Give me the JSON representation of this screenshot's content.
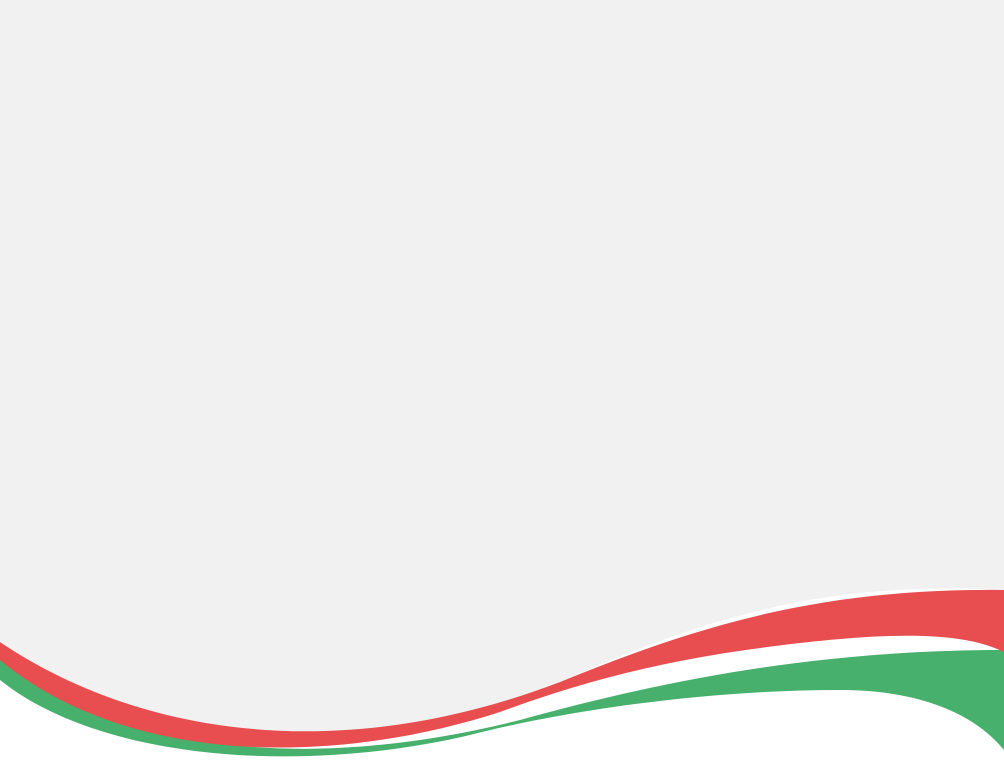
{
  "background": {
    "panel_color": "#f1f1f1",
    "base_color": "#ffffff"
  },
  "waves": [
    {
      "name": "red-ribbon",
      "color": "#e84e4f"
    },
    {
      "name": "green-ribbon",
      "color": "#47b06c"
    }
  ]
}
